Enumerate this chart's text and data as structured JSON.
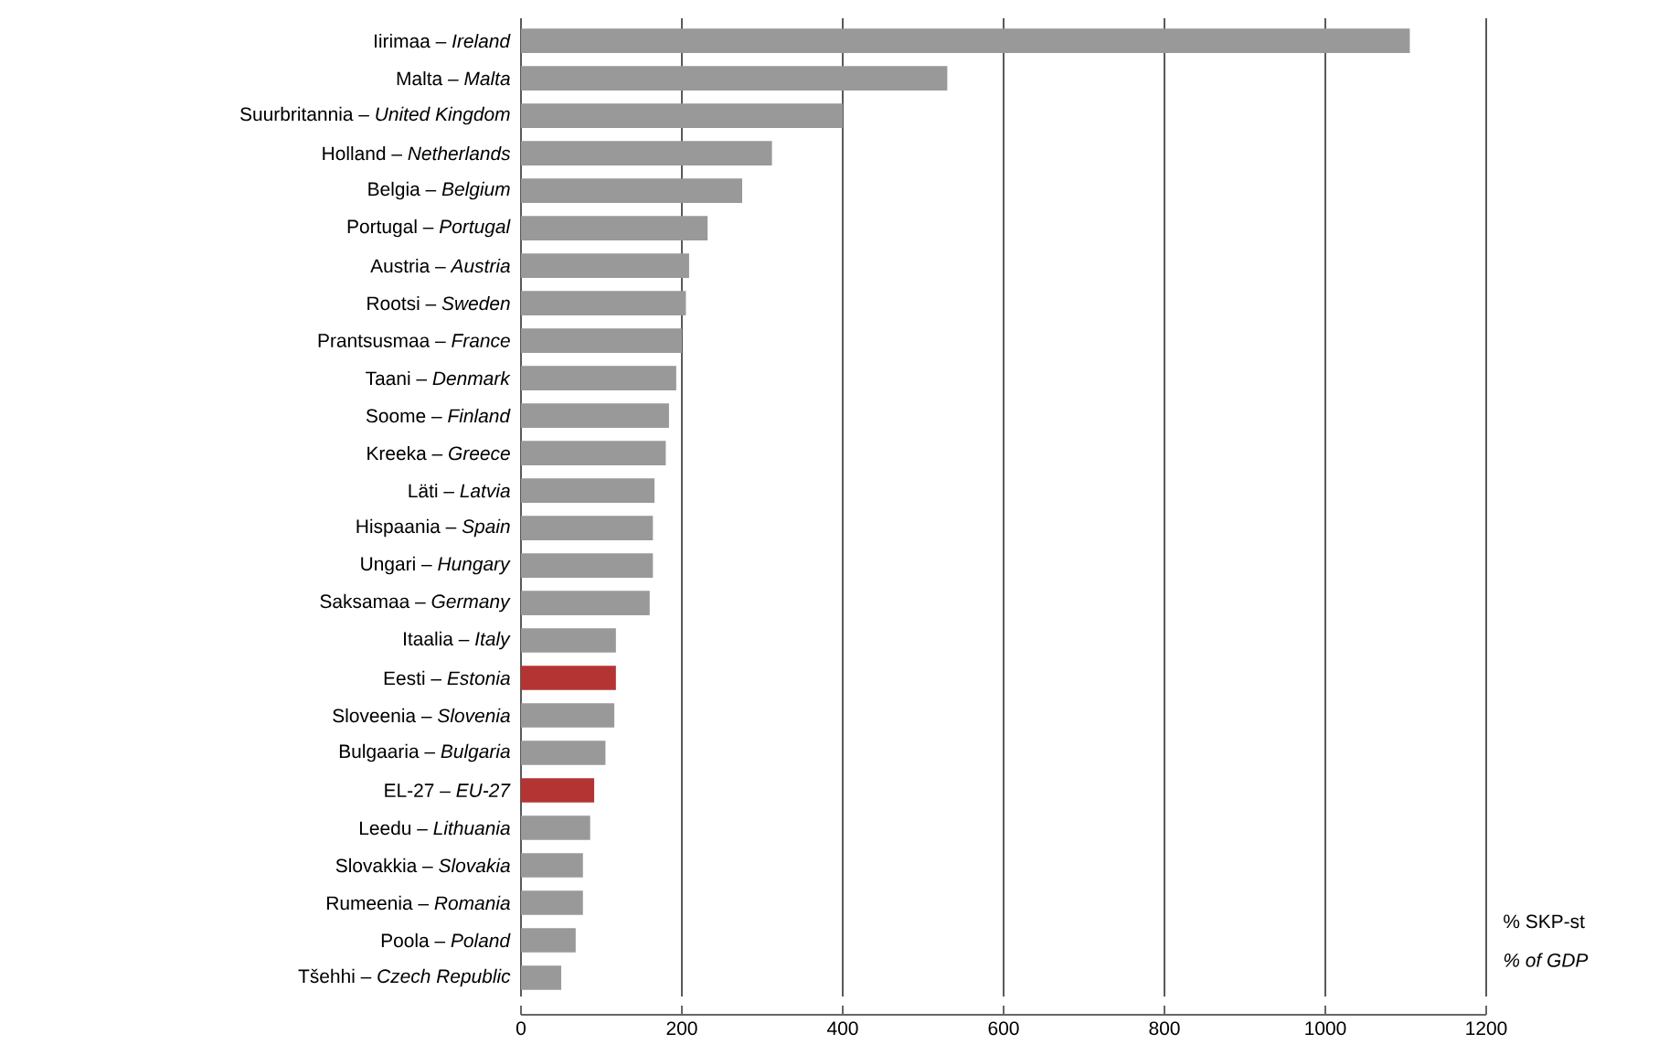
{
  "chart_data": {
    "type": "bar",
    "orientation": "horizontal",
    "categories": [
      "Iirimaa – *Ireland*",
      "Malta – *Malta*",
      "Suurbritannia – *United Kingdom*",
      "Holland – *Netherlands*",
      "Belgia – *Belgium*",
      "Portugal – *Portugal*",
      "Austria – *Austria*",
      "Rootsi – *Sweden*",
      "Prantsusmaa – *France*",
      "Taani – *Denmark*",
      "Soome – *Finland*",
      "Kreeka – *Greece*",
      "Läti – *Latvia*",
      "Hispaania – *Spain*",
      "Ungari – *Hungary*",
      "Saksamaa – *Germany*",
      "Itaalia – *Italy*",
      "Eesti – *Estonia*",
      "Sloveenia – *Slovenia*",
      "Bulgaaria – *Bulgaria*",
      "EL-27 – *EU-27*",
      "Leedu – *Lithuania*",
      "Slovakkia – *Slovakia*",
      "Rumeenia – *Romania*",
      "Poola – *Poland*",
      "Tšehhi – *Czech Republic*"
    ],
    "values": [
      1105,
      530,
      400,
      312,
      275,
      232,
      209,
      205,
      200,
      193,
      184,
      180,
      166,
      164,
      164,
      160,
      118,
      118,
      116,
      105,
      91,
      86,
      77,
      77,
      68,
      50
    ],
    "colors": [
      "#999999",
      "#999999",
      "#999999",
      "#999999",
      "#999999",
      "#999999",
      "#999999",
      "#999999",
      "#999999",
      "#999999",
      "#999999",
      "#999999",
      "#999999",
      "#999999",
      "#999999",
      "#999999",
      "#999999",
      "#b43434",
      "#999999",
      "#999999",
      "#b43434",
      "#999999",
      "#999999",
      "#999999",
      "#999999",
      "#999999"
    ],
    "xlim": [
      0,
      1200
    ],
    "xticks": [
      0,
      200,
      400,
      600,
      800,
      1000,
      1200
    ],
    "grid": "x",
    "annotations": [
      "% SKP-st",
      "% of GDP"
    ]
  }
}
